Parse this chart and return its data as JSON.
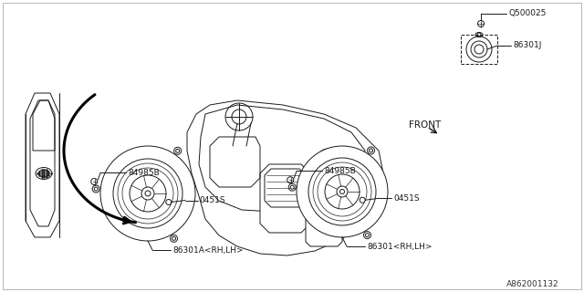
{
  "bg_color": "#ffffff",
  "line_color": "#1a1a1a",
  "text_color": "#1a1a1a",
  "diagram_number": "A862001132",
  "font_size": 6.5,
  "border_color": "#888888",
  "thick_lw": 2.2,
  "thin_lw": 0.7,
  "med_lw": 1.0,
  "label_84985B_left": "84985B",
  "label_0451S_left": "0451S",
  "label_86301A": "86301A<RH,LH>",
  "label_84985B_right": "84985B",
  "label_0451S_right": "0451S",
  "label_86301": "86301<RH,LH>",
  "label_Q500025": "Q500025",
  "label_86301J": "86301J",
  "label_FRONT": "FRONT"
}
